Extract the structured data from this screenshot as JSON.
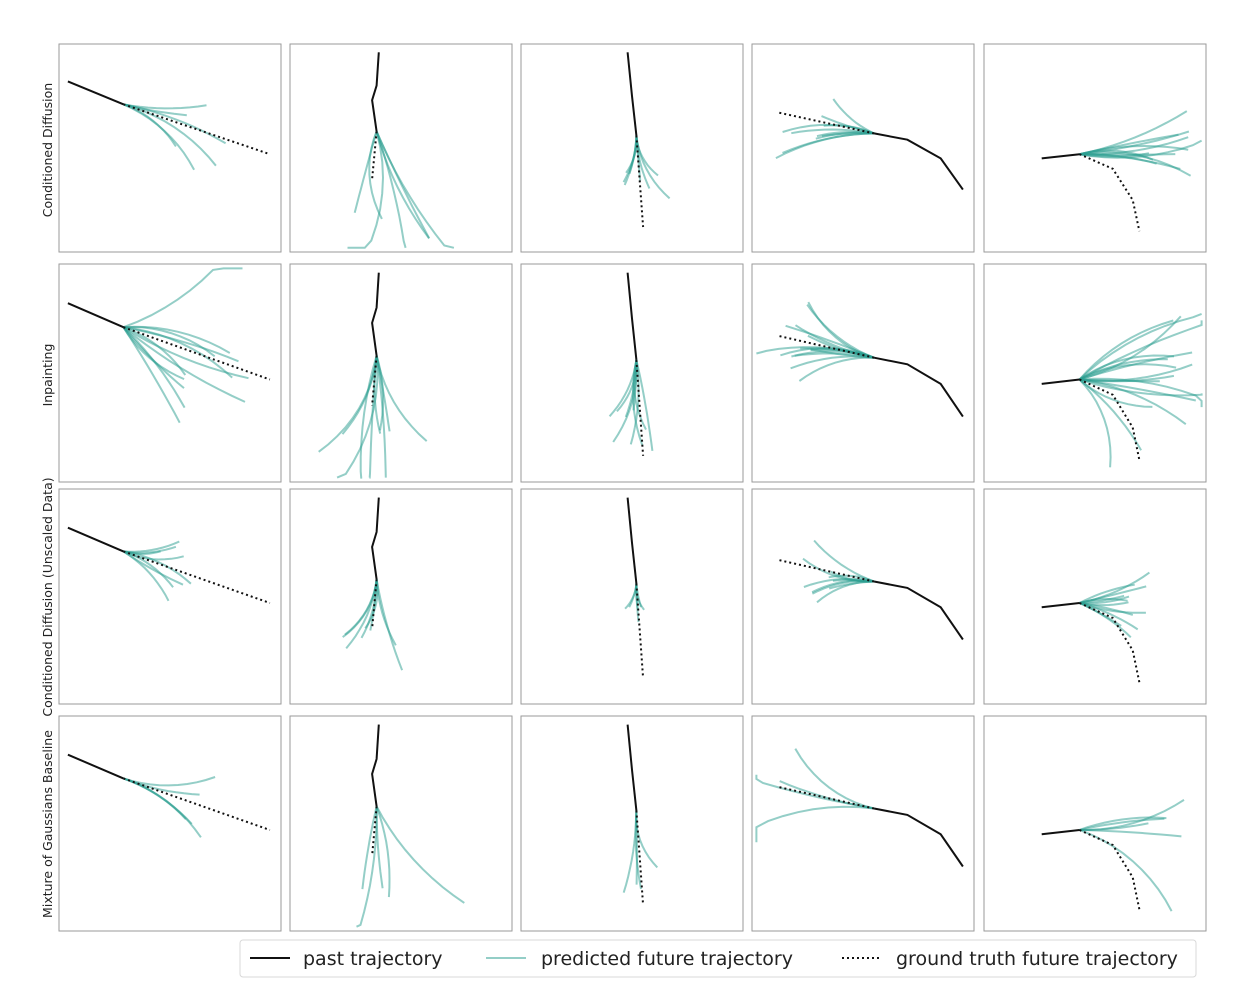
{
  "figure": {
    "row_labels": [
      "Conditioned Diffusion",
      "Inpainting",
      "Conditioned Diffusion (Unscaled Data)",
      "Mixture of Gaussians Baseline"
    ],
    "legend": {
      "past": "past trajectory",
      "predicted": "predicted future trajectory",
      "ground_truth": "ground truth future trajectory"
    },
    "colors": {
      "past": "#111111",
      "predicted": "#2a9d8f",
      "ground_truth": "#111111",
      "frame": "#9a9a9a"
    },
    "scenarios": [
      "straight-diagonal",
      "vertical-jitter",
      "vertical-straight",
      "curve-left",
      "turn-right"
    ]
  }
}
